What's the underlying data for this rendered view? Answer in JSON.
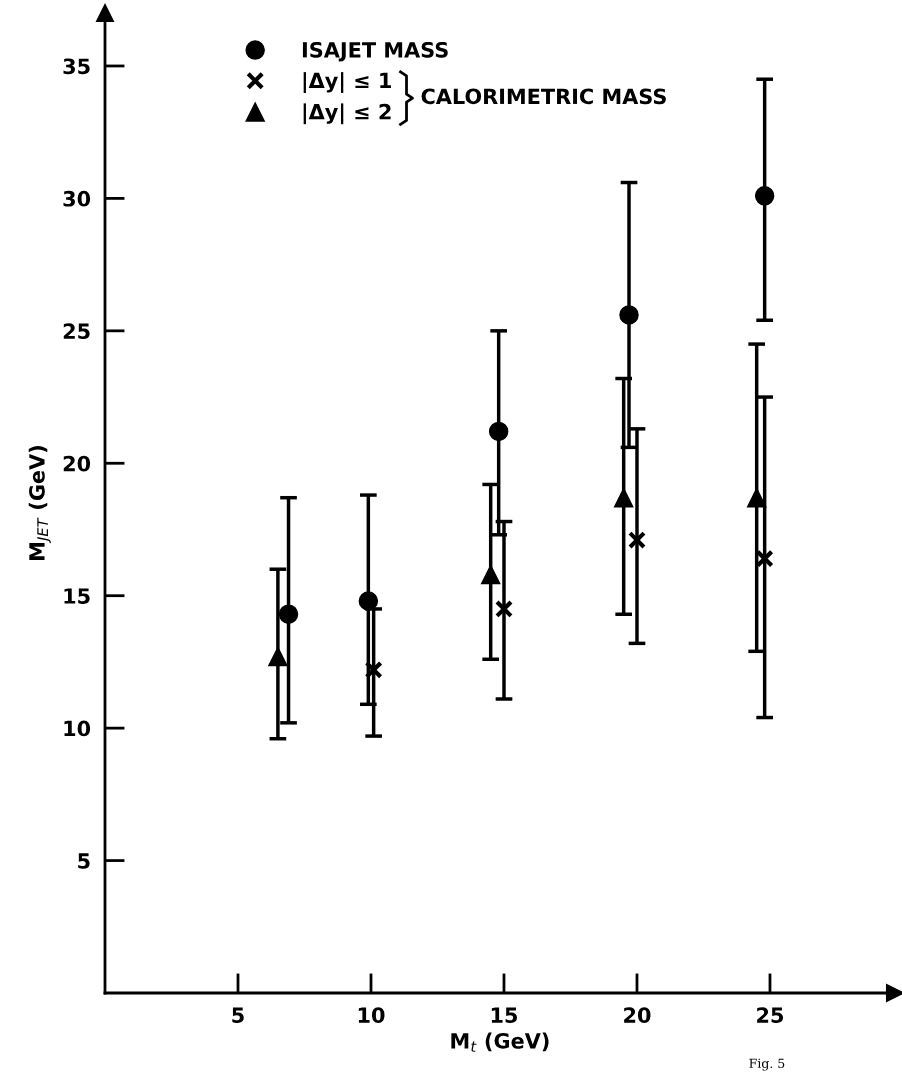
{
  "chart_data": {
    "type": "scatter",
    "xlabel": "M$_{t}$ (GeV)",
    "ylabel": "M$_{JET}$ (GeV)",
    "xlim": [
      0,
      29.7
    ],
    "ylim": [
      0,
      37
    ],
    "xticks": [
      5,
      10,
      15,
      20,
      25
    ],
    "yticks": [
      5,
      10,
      15,
      20,
      25,
      30,
      35
    ],
    "grid": false,
    "legend": "top left",
    "series": [
      {
        "name": "ISAJET MASS",
        "color": "#000000",
        "marker": "circle",
        "x": [
          6.9,
          9.9,
          14.8,
          19.7,
          24.8
        ],
        "values": [
          14.3,
          14.8,
          21.2,
          25.6,
          30.1
        ],
        "errors": [
          [
            10.2,
            18.7
          ],
          [
            10.9,
            18.8
          ],
          [
            17.3,
            25.0
          ],
          [
            20.6,
            30.6
          ],
          [
            25.4,
            34.5
          ]
        ]
      },
      {
        "name": "|Δy| ≤ 1",
        "color": "#000000",
        "marker": "cross",
        "x": [
          10.1,
          15.0,
          20.0,
          24.8
        ],
        "values": [
          12.2,
          14.5,
          17.1,
          16.4
        ],
        "errors": [
          [
            9.7,
            14.5
          ],
          [
            11.1,
            17.8
          ],
          [
            13.2,
            21.3
          ],
          [
            10.4,
            22.5
          ]
        ]
      },
      {
        "name": "|Δy| ≤ 2",
        "color": "#000000",
        "marker": "triangle",
        "x": [
          6.5,
          14.5,
          19.5,
          24.5
        ],
        "values": [
          12.7,
          15.8,
          18.7,
          18.7
        ],
        "errors": [
          [
            9.6,
            16.0
          ],
          [
            12.6,
            19.2
          ],
          [
            14.3,
            23.2
          ],
          [
            12.9,
            24.5
          ]
        ]
      }
    ],
    "annotations": [
      "CALORIMETRIC MASS",
      "Fig. 5"
    ]
  }
}
